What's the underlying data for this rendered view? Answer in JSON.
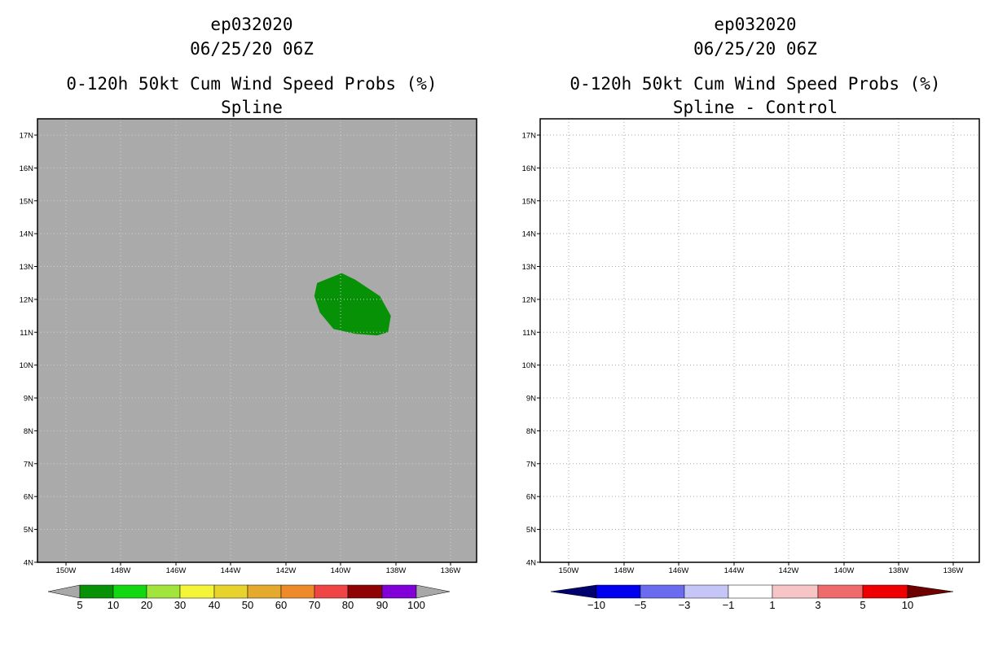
{
  "panels": [
    {
      "id": "left",
      "title_lines": [
        "ep032020",
        "06/25/20 06Z",
        "0-120h 50kt Cum Wind Speed Probs (%)",
        "Spline"
      ],
      "background": "#aaaaaa",
      "grid_color": "#cfcfcf",
      "lon_ticks": [
        "150W",
        "148W",
        "146W",
        "144W",
        "142W",
        "140W",
        "138W",
        "136W"
      ],
      "lat_ticks": [
        "17N",
        "16N",
        "15N",
        "14N",
        "13N",
        "12N",
        "11N",
        "10N",
        "9N",
        "8N",
        "7N",
        "6N",
        "5N",
        "4N"
      ],
      "colorbar": {
        "labels": [
          "5",
          "10",
          "20",
          "30",
          "40",
          "50",
          "60",
          "70",
          "80",
          "90",
          "100"
        ],
        "colors": [
          "#a8a8a8",
          "#069106",
          "#12d812",
          "#a1e53c",
          "#f4f439",
          "#e8d22c",
          "#e5aa2d",
          "#ef8a2b",
          "#f04545",
          "#8e0404",
          "#8100d8",
          "#a8a8a8"
        ]
      },
      "shape_color": "#069106"
    },
    {
      "id": "right",
      "title_lines": [
        "ep032020",
        "06/25/20 06Z",
        "0-120h 50kt Cum Wind Speed Probs (%)",
        "Spline - Control"
      ],
      "background": "#ffffff",
      "grid_color": "#aaaaaa",
      "lon_ticks": [
        "150W",
        "148W",
        "146W",
        "144W",
        "142W",
        "140W",
        "138W",
        "136W"
      ],
      "lat_ticks": [
        "17N",
        "16N",
        "15N",
        "14N",
        "13N",
        "12N",
        "11N",
        "10N",
        "9N",
        "8N",
        "7N",
        "6N",
        "5N",
        "4N"
      ],
      "colorbar": {
        "labels": [
          "-10",
          "-5",
          "-3",
          "-1",
          "1",
          "3",
          "5",
          "10"
        ],
        "colors": [
          "#00006e",
          "#0000ee",
          "#6b6bef",
          "#c5c5f7",
          "#ffffff",
          "#f7c5c5",
          "#ef6b6b",
          "#ee0000",
          "#6e0000"
        ]
      }
    }
  ],
  "map_data": {
    "lon_values": [
      -150,
      -148,
      -146,
      -144,
      -142,
      -140,
      -138,
      -136
    ],
    "lat_values": [
      17,
      16,
      15,
      14,
      13,
      12,
      11,
      10,
      9,
      8,
      7,
      6,
      5,
      4
    ],
    "prob_region_left": {
      "category": "5-10",
      "outline_lonlat": [
        [
          -140.8,
          12.5
        ],
        [
          -139.9,
          12.8
        ],
        [
          -139.4,
          12.6
        ],
        [
          -138.5,
          12.1
        ],
        [
          -138.1,
          11.5
        ],
        [
          -138.2,
          11.0
        ],
        [
          -138.6,
          10.9
        ],
        [
          -139.4,
          10.95
        ],
        [
          -140.2,
          11.1
        ],
        [
          -140.7,
          11.6
        ],
        [
          -140.9,
          12.1
        ]
      ]
    }
  }
}
